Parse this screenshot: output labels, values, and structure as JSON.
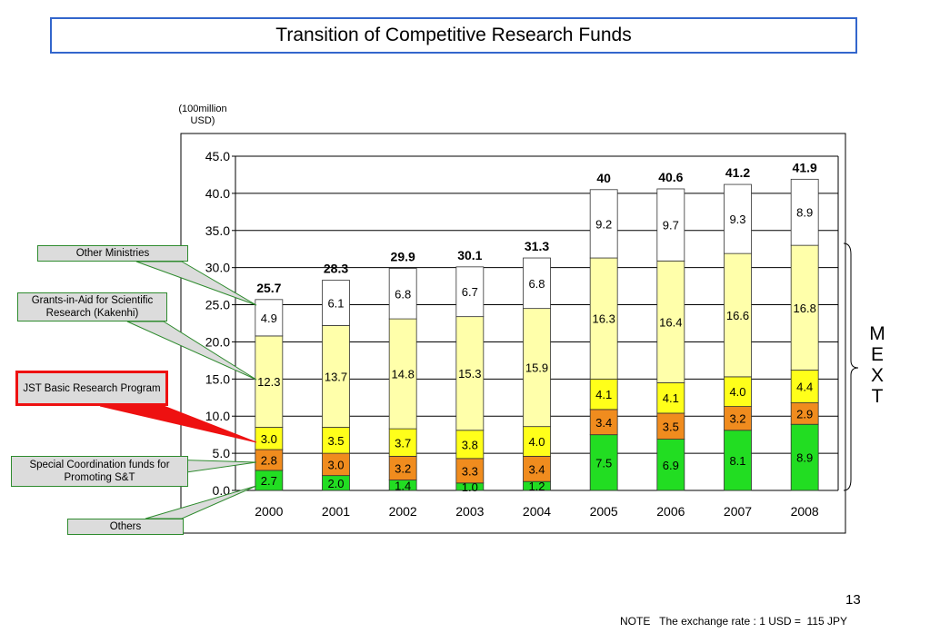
{
  "title": "Transition of Competitive Research Funds",
  "unit_label": "(100million USD)",
  "callouts": {
    "other_ministries": "Other Ministries",
    "kakenhi": "Grants-in-Aid for Scientific Research (Kakenhi)",
    "jst": "JST Basic Research Program",
    "special_coordination": "Special Coordination funds for Promoting S&T",
    "others": "Others"
  },
  "mext_label": "M\nE\nX\nT",
  "page_number": "13",
  "note": "NOTE   The exchange rate : 1 USD =  115 JPY",
  "chart_data": {
    "type": "bar",
    "stacked": true,
    "categories": [
      "2000",
      "2001",
      "2002",
      "2003",
      "2004",
      "2005",
      "2006",
      "2007",
      "2008"
    ],
    "ylim": [
      0,
      45
    ],
    "yticks": [
      "0.0",
      "5.0",
      "10.0",
      "15.0",
      "20.0",
      "25.0",
      "30.0",
      "35.0",
      "40.0",
      "45.0"
    ],
    "grid": true,
    "series": [
      {
        "color": "#22dd22",
        "values": [
          2.7,
          2.0,
          1.4,
          1.0,
          1.2,
          7.5,
          6.9,
          8.1,
          8.9
        ],
        "labels": [
          "2.7",
          "2.0",
          "1.4",
          "1.0",
          "1.2",
          "7.5",
          "6.9",
          "8.1",
          "8.9"
        ]
      },
      {
        "color": "#f08c1e",
        "values": [
          2.8,
          3.0,
          3.2,
          3.3,
          3.4,
          3.4,
          3.5,
          3.2,
          2.9
        ],
        "labels": [
          "2.8",
          "3.0",
          "3.2",
          "3.3",
          "3.4",
          "3.4",
          "3.5",
          "3.2",
          "2.9"
        ]
      },
      {
        "color": "#ffff1a",
        "values": [
          3.0,
          3.5,
          3.7,
          3.8,
          4.0,
          4.1,
          4.1,
          4.0,
          4.4
        ],
        "labels": [
          "3.0",
          "3.5",
          "3.7",
          "3.8",
          "4.0",
          "4.1",
          "4.1",
          "4.0",
          "4.4"
        ]
      },
      {
        "color": "#ffffaa",
        "values": [
          12.3,
          13.7,
          14.8,
          15.3,
          15.9,
          16.3,
          16.4,
          16.6,
          16.8
        ],
        "labels": [
          "12.3",
          "13.7",
          "14.8",
          "15.3",
          "15.9",
          "16.3",
          "16.4",
          "16.6",
          "16.8"
        ]
      },
      {
        "color": "#ffffff",
        "values": [
          4.9,
          6.1,
          6.8,
          6.7,
          6.8,
          9.2,
          9.7,
          9.3,
          8.9
        ],
        "labels": [
          "4.9",
          "6.1",
          "6.8",
          "6.7",
          "6.8",
          "9.2",
          "9.7",
          "9.3",
          "8.9"
        ]
      }
    ],
    "totals": [
      "25.7",
      "28.3",
      "29.9",
      "30.1",
      "31.3",
      "40",
      "40.6",
      "41.2",
      "41.9"
    ]
  }
}
